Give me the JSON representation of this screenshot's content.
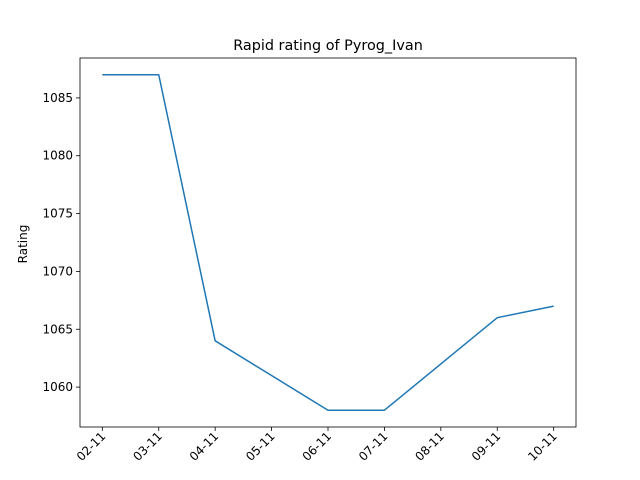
{
  "chart_data": {
    "type": "line",
    "title": "Rapid rating of Pyrog_Ivan",
    "xlabel": "",
    "ylabel": "Rating",
    "categories": [
      "02-11",
      "03-11",
      "04-11",
      "05-11",
      "06-11",
      "07-11",
      "08-11",
      "09-11",
      "10-11"
    ],
    "series": [
      {
        "values": [
          1087,
          1087,
          1064,
          1061,
          1058,
          1058,
          1062,
          1066,
          1067
        ],
        "color": "#1f77b4"
      }
    ],
    "yticks": [
      1060,
      1065,
      1070,
      1075,
      1080,
      1085
    ],
    "ylim": [
      1056.55,
      1088.45
    ],
    "grid": false,
    "legend": "none"
  }
}
